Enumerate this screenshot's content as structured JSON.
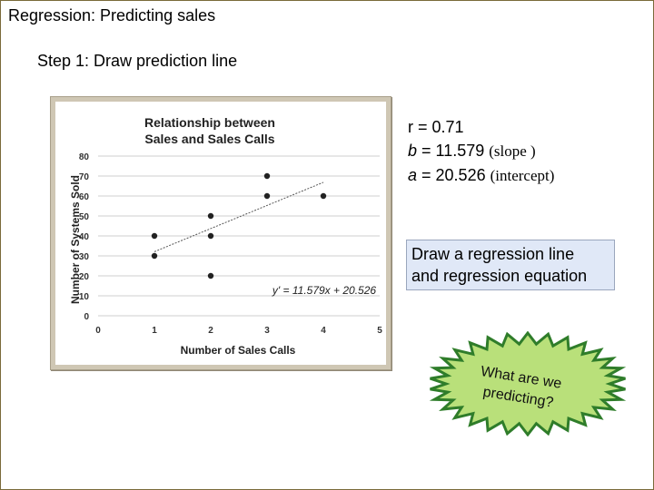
{
  "slide": {
    "title": "Regression: Predicting sales",
    "subtitle": "Step 1: Draw prediction line"
  },
  "stats": {
    "r_label": "r = ",
    "r_value": "0.71",
    "b_label": "b",
    "b_value": " = 11.579 ",
    "b_note": "(slope )",
    "a_label": "a",
    "a_value": " = 20.526 ",
    "a_note": "(intercept)"
  },
  "instruction_box": {
    "line1": "Draw a regression line",
    "line2": "and regression equation"
  },
  "burst": {
    "line1": "What are we",
    "line2": "predicting?"
  },
  "colors": {
    "chart_frame": "#cfc7b4",
    "instruction_bg": "#e0e8f7",
    "burst_fill": "#b9e07a",
    "burst_stroke": "#2f7d2a"
  },
  "chart_data": {
    "type": "scatter",
    "title_lines": [
      "Relationship between",
      "Sales and Sales Calls"
    ],
    "xlabel": "Number of Sales Calls",
    "ylabel": "Number of Systems Sold",
    "xlim": [
      0,
      5
    ],
    "ylim": [
      0,
      80
    ],
    "xticks": [
      0,
      1,
      2,
      3,
      4,
      5
    ],
    "yticks": [
      0,
      10,
      20,
      30,
      40,
      50,
      60,
      70,
      80
    ],
    "grid": "horizontal",
    "points": [
      {
        "x": 1,
        "y": 30
      },
      {
        "x": 1,
        "y": 40
      },
      {
        "x": 2,
        "y": 20
      },
      {
        "x": 2,
        "y": 40
      },
      {
        "x": 2,
        "y": 50
      },
      {
        "x": 3,
        "y": 60
      },
      {
        "x": 3,
        "y": 70
      },
      {
        "x": 4,
        "y": 60
      }
    ],
    "trendline": {
      "slope": 11.579,
      "intercept": 20.526,
      "x_range": [
        1,
        4
      ]
    },
    "equation_label": "y' = 11.579x + 20.526"
  }
}
